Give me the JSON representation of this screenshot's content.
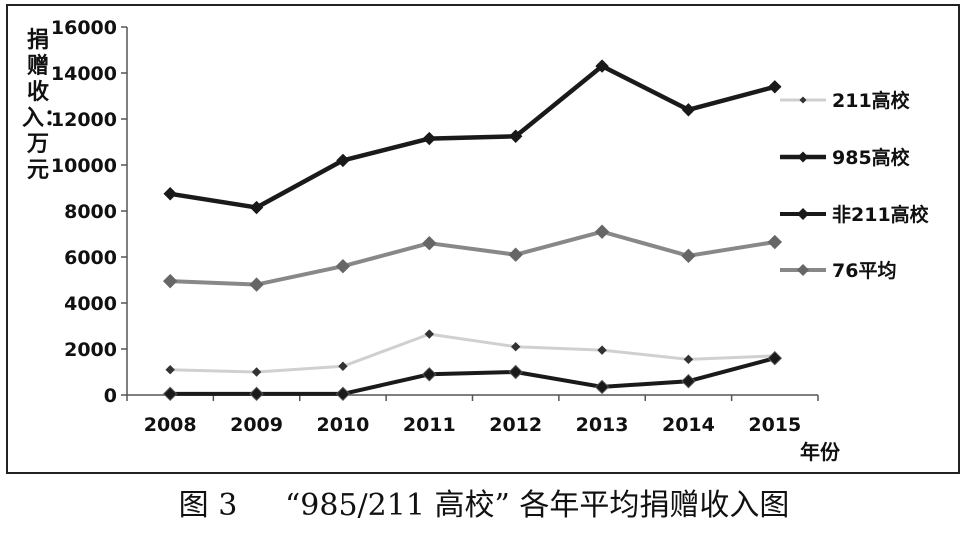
{
  "chart_data": {
    "type": "line",
    "title": "",
    "ylabel": "捐赠收入：万元",
    "xlabel": "年份",
    "categories": [
      "2008",
      "2009",
      "2010",
      "2011",
      "2012",
      "2013",
      "2014",
      "2015"
    ],
    "ylim": [
      0,
      16000
    ],
    "yticks": [
      "0",
      "2000",
      "4000",
      "6000",
      "8000",
      "10000",
      "12000",
      "14000",
      "16000"
    ],
    "grid": false,
    "legend_position": "right",
    "series": [
      {
        "name": "211高校",
        "color": "#d0d0d0",
        "values": [
          1100,
          1000,
          1250,
          2650,
          2100,
          1950,
          1550,
          1700
        ]
      },
      {
        "name": "985高校",
        "color": "#1a1a1a",
        "values": [
          8750,
          8150,
          10200,
          11150,
          11250,
          14300,
          12400,
          13400
        ]
      },
      {
        "name": "非211高校",
        "color": "#1a1a1a",
        "values": [
          50,
          50,
          50,
          900,
          1000,
          350,
          600,
          1600
        ]
      },
      {
        "name": "76平均",
        "color": "#888888",
        "values": [
          4950,
          4800,
          5600,
          6600,
          6100,
          7100,
          6050,
          6650
        ]
      }
    ]
  },
  "caption": "图 3     “985/211 高校” 各年平均捐赠收入图"
}
